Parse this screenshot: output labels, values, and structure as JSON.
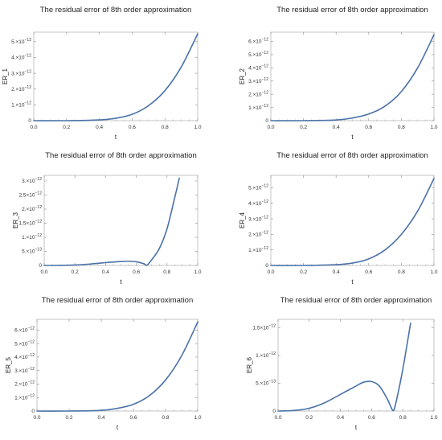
{
  "colors": {
    "line": "#4a72a8",
    "frame": "#b8b8b8",
    "tick": "#8a8a8a"
  },
  "chart_data": [
    {
      "type": "line",
      "title": "The residual error of  8th order approximation",
      "xlabel": "t",
      "ylabel": "ER_1",
      "xlim": [
        0,
        1
      ],
      "ylim": [
        0,
        5.6e-12
      ],
      "xticks": [
        "0.0",
        "0.2",
        "0.4",
        "0.6",
        "0.8",
        "1.0"
      ],
      "yticks": [
        {
          "value": 0,
          "mant": "0",
          "exp": ""
        },
        {
          "value": 1e-12,
          "mant": "1.×10",
          "exp": "−12"
        },
        {
          "value": 2e-12,
          "mant": "2.×10",
          "exp": "−12"
        },
        {
          "value": 3e-12,
          "mant": "3.×10",
          "exp": "−12"
        },
        {
          "value": 4e-12,
          "mant": "4.×10",
          "exp": "−12"
        },
        {
          "value": 5e-12,
          "mant": "5.×10",
          "exp": "−12"
        }
      ],
      "series": [
        {
          "x": [
            0,
            0.2,
            0.4,
            0.5,
            0.6,
            0.7,
            0.8,
            0.9,
            1.0
          ],
          "y": [
            0,
            0,
            5e-14,
            1.5e-13,
            4e-13,
            9.5e-13,
            1.9e-12,
            3.4e-12,
            5.5e-12
          ]
        }
      ]
    },
    {
      "type": "line",
      "title": "The residual error of  8th order approximation",
      "xlabel": "t",
      "ylabel": "ER_2",
      "xlim": [
        0,
        1
      ],
      "ylim": [
        0,
        6.7e-12
      ],
      "xticks": [
        "0.0",
        "0.2",
        "0.4",
        "0.6",
        "0.8",
        "1.0"
      ],
      "yticks": [
        {
          "value": 0,
          "mant": "0",
          "exp": ""
        },
        {
          "value": 1e-12,
          "mant": "1.×10",
          "exp": "−12"
        },
        {
          "value": 2e-12,
          "mant": "2.×10",
          "exp": "−12"
        },
        {
          "value": 3e-12,
          "mant": "3.×10",
          "exp": "−12"
        },
        {
          "value": 4e-12,
          "mant": "4.×10",
          "exp": "−12"
        },
        {
          "value": 5e-12,
          "mant": "5.×10",
          "exp": "−12"
        },
        {
          "value": 6e-12,
          "mant": "6.×10",
          "exp": "−12"
        }
      ],
      "series": [
        {
          "x": [
            0,
            0.2,
            0.4,
            0.5,
            0.6,
            0.7,
            0.8,
            0.9,
            1.0
          ],
          "y": [
            0,
            0,
            5e-14,
            2e-13,
            5e-13,
            1.1e-12,
            2.2e-12,
            4e-12,
            6.5e-12
          ]
        }
      ]
    },
    {
      "type": "line",
      "title": "The residual error of  8th order approximation",
      "xlabel": "t",
      "ylabel": "ER_3",
      "xlim": [
        0,
        1
      ],
      "ylim": [
        0,
        3.2e-12
      ],
      "xticks": [
        "0.0",
        "0.2",
        "0.4",
        "0.6",
        "0.8",
        "1.0"
      ],
      "yticks": [
        {
          "value": 0,
          "mant": "0",
          "exp": ""
        },
        {
          "value": 5e-13,
          "mant": "5.×10",
          "exp": "−13"
        },
        {
          "value": 1e-12,
          "mant": "1.×10",
          "exp": "−12"
        },
        {
          "value": 1.5e-12,
          "mant": "1.5×10",
          "exp": "−12"
        },
        {
          "value": 2e-12,
          "mant": "2.×10",
          "exp": "−12"
        },
        {
          "value": 2.5e-12,
          "mant": "2.5×10",
          "exp": "−12"
        },
        {
          "value": 3e-12,
          "mant": "3.×10",
          "exp": "−12"
        }
      ],
      "series": [
        {
          "x": [
            0,
            0.1,
            0.2,
            0.3,
            0.4,
            0.5,
            0.55,
            0.6,
            0.65,
            0.67,
            0.7,
            0.75,
            0.8,
            0.85,
            0.88
          ],
          "y": [
            0,
            2e-15,
            1.5e-14,
            5e-14,
            1e-13,
            1.4e-13,
            1.5e-13,
            1.3e-13,
            6e-14,
            1e-14,
            2e-13,
            6e-13,
            1.3e-12,
            2.4e-12,
            3.1e-12
          ]
        }
      ]
    },
    {
      "type": "line",
      "title": "The residual error of  8th order approximation",
      "xlabel": "t",
      "ylabel": "ER_4",
      "xlim": [
        0,
        1
      ],
      "ylim": [
        0,
        5.8e-12
      ],
      "xticks": [
        "0.0",
        "0.2",
        "0.4",
        "0.6",
        "0.8",
        "1.0"
      ],
      "yticks": [
        {
          "value": 0,
          "mant": "0",
          "exp": ""
        },
        {
          "value": 1e-12,
          "mant": "1.×10",
          "exp": "−12"
        },
        {
          "value": 2e-12,
          "mant": "2.×10",
          "exp": "−12"
        },
        {
          "value": 3e-12,
          "mant": "3.×10",
          "exp": "−12"
        },
        {
          "value": 4e-12,
          "mant": "4.×10",
          "exp": "−12"
        },
        {
          "value": 5e-12,
          "mant": "5.×10",
          "exp": "−12"
        }
      ],
      "series": [
        {
          "x": [
            0,
            0.2,
            0.4,
            0.5,
            0.6,
            0.7,
            0.8,
            0.9,
            1.0
          ],
          "y": [
            0,
            0,
            5e-14,
            1.5e-13,
            4.2e-13,
            1e-12,
            2e-12,
            3.5e-12,
            5.6e-12
          ]
        }
      ]
    },
    {
      "type": "line",
      "title": "The residual error of  8th order approximation",
      "xlabel": "t",
      "ylabel": "ER_5",
      "xlim": [
        0,
        1
      ],
      "ylim": [
        0,
        6.8e-12
      ],
      "xticks": [
        "0.0",
        "0.2",
        "0.4",
        "0.6",
        "0.8",
        "1.0"
      ],
      "yticks": [
        {
          "value": 0,
          "mant": "0",
          "exp": ""
        },
        {
          "value": 1e-12,
          "mant": "1.×10",
          "exp": "−12"
        },
        {
          "value": 2e-12,
          "mant": "2.×10",
          "exp": "−12"
        },
        {
          "value": 3e-12,
          "mant": "3.×10",
          "exp": "−12"
        },
        {
          "value": 4e-12,
          "mant": "4.×10",
          "exp": "−12"
        },
        {
          "value": 5e-12,
          "mant": "5.×10",
          "exp": "−12"
        },
        {
          "value": 6e-12,
          "mant": "6.×10",
          "exp": "−12"
        }
      ],
      "series": [
        {
          "x": [
            0,
            0.2,
            0.4,
            0.5,
            0.6,
            0.7,
            0.8,
            0.9,
            1.0
          ],
          "y": [
            0,
            0,
            5e-14,
            2e-13,
            5e-13,
            1.15e-12,
            2.3e-12,
            4.1e-12,
            6.6e-12
          ]
        }
      ]
    },
    {
      "type": "line",
      "title": "The residual error of  8th order approximation",
      "xlabel": "t",
      "ylabel": "ER_6",
      "xlim": [
        0,
        1
      ],
      "ylim": [
        0,
        1.65e-12
      ],
      "xticks": [
        "0.0",
        "0.2",
        "0.4",
        "0.6",
        "0.8",
        "1.0"
      ],
      "yticks": [
        {
          "value": 0,
          "mant": "0",
          "exp": ""
        },
        {
          "value": 5e-13,
          "mant": "5.×10",
          "exp": "−13"
        },
        {
          "value": 1e-12,
          "mant": "1.×10",
          "exp": "−12"
        },
        {
          "value": 1.5e-12,
          "mant": "1.5×10",
          "exp": "−12"
        }
      ],
      "series": [
        {
          "x": [
            0,
            0.1,
            0.2,
            0.3,
            0.4,
            0.5,
            0.55,
            0.6,
            0.65,
            0.7,
            0.72,
            0.74,
            0.76,
            0.8,
            0.85
          ],
          "y": [
            0,
            1e-14,
            5e-14,
            1.5e-13,
            3e-13,
            4.5e-13,
            5.2e-13,
            5.3e-13,
            4.5e-13,
            2.2e-13,
            1e-13,
            1e-14,
            2e-13,
            7.5e-13,
            1.58e-12
          ]
        }
      ]
    }
  ]
}
